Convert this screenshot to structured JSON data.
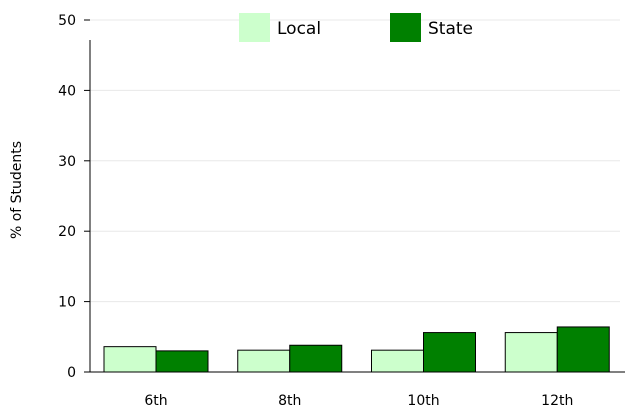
{
  "chart_data": {
    "type": "bar",
    "title": "",
    "xlabel": "",
    "ylabel": "% of Students",
    "ylim": [
      0,
      50
    ],
    "yticks": [
      0,
      10,
      20,
      30,
      40,
      50
    ],
    "grid": "horizontal",
    "legend": "top-center",
    "categories": [
      "6th",
      "8th",
      "10th",
      "12th"
    ],
    "series": [
      {
        "name": "Local",
        "color": "#ccffcc",
        "values": [
          3.6,
          3.1,
          3.1,
          5.6
        ]
      },
      {
        "name": "State",
        "color": "#008000",
        "values": [
          3.0,
          3.8,
          5.6,
          6.4
        ]
      }
    ]
  }
}
